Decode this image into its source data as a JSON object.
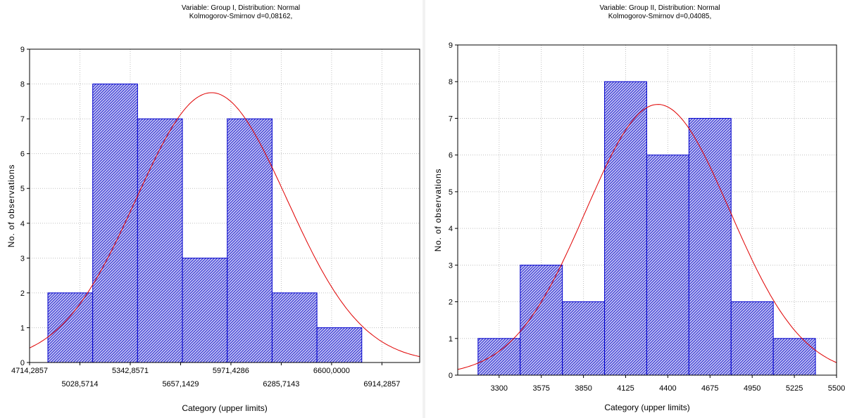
{
  "colors": {
    "bar_stroke": "#0000cc",
    "bar_hatch": "#2b2bd0",
    "curve": "#e00000",
    "grid": "#c0c0c0"
  },
  "chart_data": [
    {
      "type": "bar",
      "title": "Variable: Group I, Distribution: Normal",
      "subtitle": "Kolmogorov-Smirnov d=0,08162,",
      "xlabel": "Category (upper limits)",
      "ylabel": "No. of observations",
      "ylim": [
        0,
        9
      ],
      "yticks": [
        0,
        1,
        2,
        3,
        4,
        5,
        6,
        7,
        8,
        9
      ],
      "xlim": [
        4714.2857,
        7150
      ],
      "xticks_top": [
        "4714,2857",
        "5342,8571",
        "5971,4286",
        "6600,0000"
      ],
      "xticks_bottom": [
        "5028,5714",
        "5657,1429",
        "6285,7143",
        "6914,2857"
      ],
      "xtick_values_top": [
        4714.2857,
        5342.8571,
        5971.4286,
        6600.0
      ],
      "xtick_values_bottom": [
        5028.5714,
        5657.1429,
        6285.7143,
        6914.2857
      ],
      "bins": [
        [
          4828.57,
          5108.57
        ],
        [
          5108.57,
          5388.57
        ],
        [
          5388.57,
          5668.57
        ],
        [
          5668.57,
          5948.57
        ],
        [
          5948.57,
          6228.57
        ],
        [
          6228.57,
          6508.57
        ],
        [
          6508.57,
          6788.57
        ]
      ],
      "values": [
        2,
        8,
        7,
        3,
        7,
        2,
        1
      ],
      "normal_fit": {
        "mean": 5850,
        "sd": 470,
        "peak": 7.75
      },
      "grid": true
    },
    {
      "type": "bar",
      "title": "Variable: Group II, Distribution: Normal",
      "subtitle": "Kolmogorov-Smirnov d=0,04085,",
      "xlabel": "Category (upper limits)",
      "ylabel": "No. of observations",
      "ylim": [
        0,
        9
      ],
      "yticks": [
        0,
        1,
        2,
        3,
        4,
        5,
        6,
        7,
        8,
        9
      ],
      "xlim": [
        3030,
        5500
      ],
      "xticks_top": [],
      "xticks_bottom": [
        "3300",
        "3575",
        "3850",
        "4125",
        "4400",
        "4675",
        "4950",
        "5225",
        "5500"
      ],
      "xtick_values_top": [],
      "xtick_values_bottom": [
        3300,
        3575,
        3850,
        4125,
        4400,
        4675,
        4950,
        5225,
        5500
      ],
      "bins": [
        [
          3162.5,
          3437.5
        ],
        [
          3437.5,
          3712.5
        ],
        [
          3712.5,
          3987.5
        ],
        [
          3987.5,
          4262.5
        ],
        [
          4262.5,
          4537.5
        ],
        [
          4537.5,
          4812.5
        ],
        [
          4812.5,
          5087.5
        ],
        [
          5087.5,
          5362.5
        ]
      ],
      "values": [
        1,
        3,
        2,
        8,
        6,
        7,
        2,
        1
      ],
      "normal_fit": {
        "mean": 4335,
        "sd": 470,
        "peak": 7.38
      },
      "grid": true
    }
  ]
}
